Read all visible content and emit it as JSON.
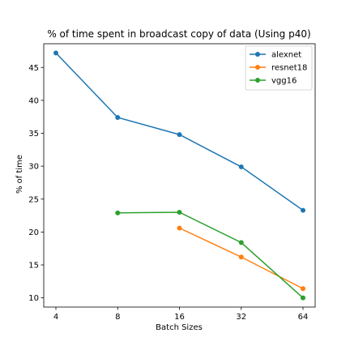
{
  "chart_data": {
    "type": "line",
    "title": "% of time spent in broadcast copy of data (Using p40)",
    "xlabel": "Batch Sizes",
    "ylabel": "% of time",
    "x_scale": "log2",
    "x": [
      4,
      8,
      16,
      32,
      64
    ],
    "xticks": [
      "4",
      "8",
      "16",
      "32",
      "64"
    ],
    "yticks": [
      10,
      15,
      20,
      25,
      30,
      35,
      40,
      45
    ],
    "ylim": [
      8.6,
      48.6
    ],
    "grid": false,
    "legend_position": "top-right",
    "series": [
      {
        "name": "alexnet",
        "color": "#1f77b4",
        "x": [
          4,
          8,
          16,
          32,
          64
        ],
        "y": [
          47.2,
          37.4,
          34.8,
          29.9,
          23.3
        ]
      },
      {
        "name": "resnet18",
        "color": "#ff7f0e",
        "x": [
          16,
          32,
          64
        ],
        "y": [
          20.6,
          16.2,
          11.4
        ]
      },
      {
        "name": "vgg16",
        "color": "#2ca02c",
        "x": [
          8,
          16,
          32,
          64
        ],
        "y": [
          22.9,
          23.0,
          18.4,
          10.0
        ]
      }
    ]
  }
}
